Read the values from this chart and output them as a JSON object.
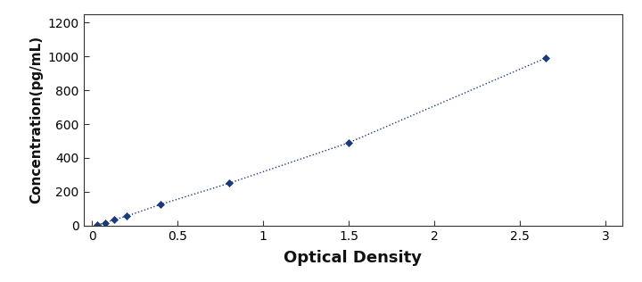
{
  "x": [
    0.031,
    0.075,
    0.128,
    0.2,
    0.4,
    0.8,
    1.5,
    2.65
  ],
  "y": [
    4,
    15,
    35,
    55,
    125,
    250,
    490,
    990
  ],
  "line_color": "#1a3a7a",
  "marker_color": "#1a3a7a",
  "marker_style": "D",
  "marker_size": 4,
  "line_style": ":",
  "line_width": 1.0,
  "xlabel": "Optical Density",
  "ylabel": "Concentration(pg/mL)",
  "xlabel_fontsize": 13,
  "ylabel_fontsize": 11,
  "xlim": [
    -0.05,
    3.1
  ],
  "ylim": [
    0,
    1250
  ],
  "xticks": [
    0,
    0.5,
    1,
    1.5,
    2,
    2.5,
    3
  ],
  "yticks": [
    0,
    200,
    400,
    600,
    800,
    1000,
    1200
  ],
  "background_color": "#ffffff",
  "tick_label_fontsize": 10,
  "figure_bg": "#ffffff",
  "spine_color": "#333333"
}
